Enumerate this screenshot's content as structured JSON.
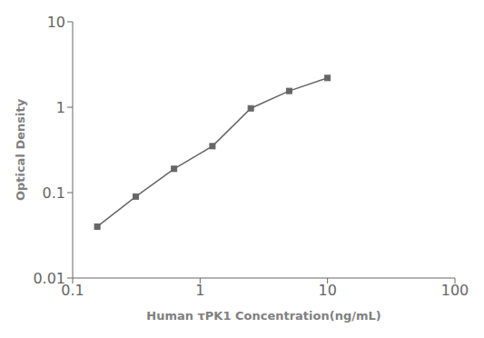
{
  "chart_data": {
    "type": "line",
    "x": [
      0.156,
      0.313,
      0.625,
      1.25,
      2.5,
      5.0,
      10.0
    ],
    "values": [
      0.04,
      0.09,
      0.19,
      0.35,
      0.97,
      1.55,
      2.2
    ],
    "xlim": [
      0.1,
      100
    ],
    "ylim": [
      0.01,
      10
    ],
    "xticks": [
      0.1,
      1,
      10,
      100
    ],
    "yticks": [
      0.01,
      0.1,
      1,
      10
    ],
    "log": true,
    "xlabel": "Human τPK1 Concentration(ng/mL)",
    "ylabel": "Optical Density",
    "color": "#666666",
    "marker": "square",
    "grid": false
  }
}
